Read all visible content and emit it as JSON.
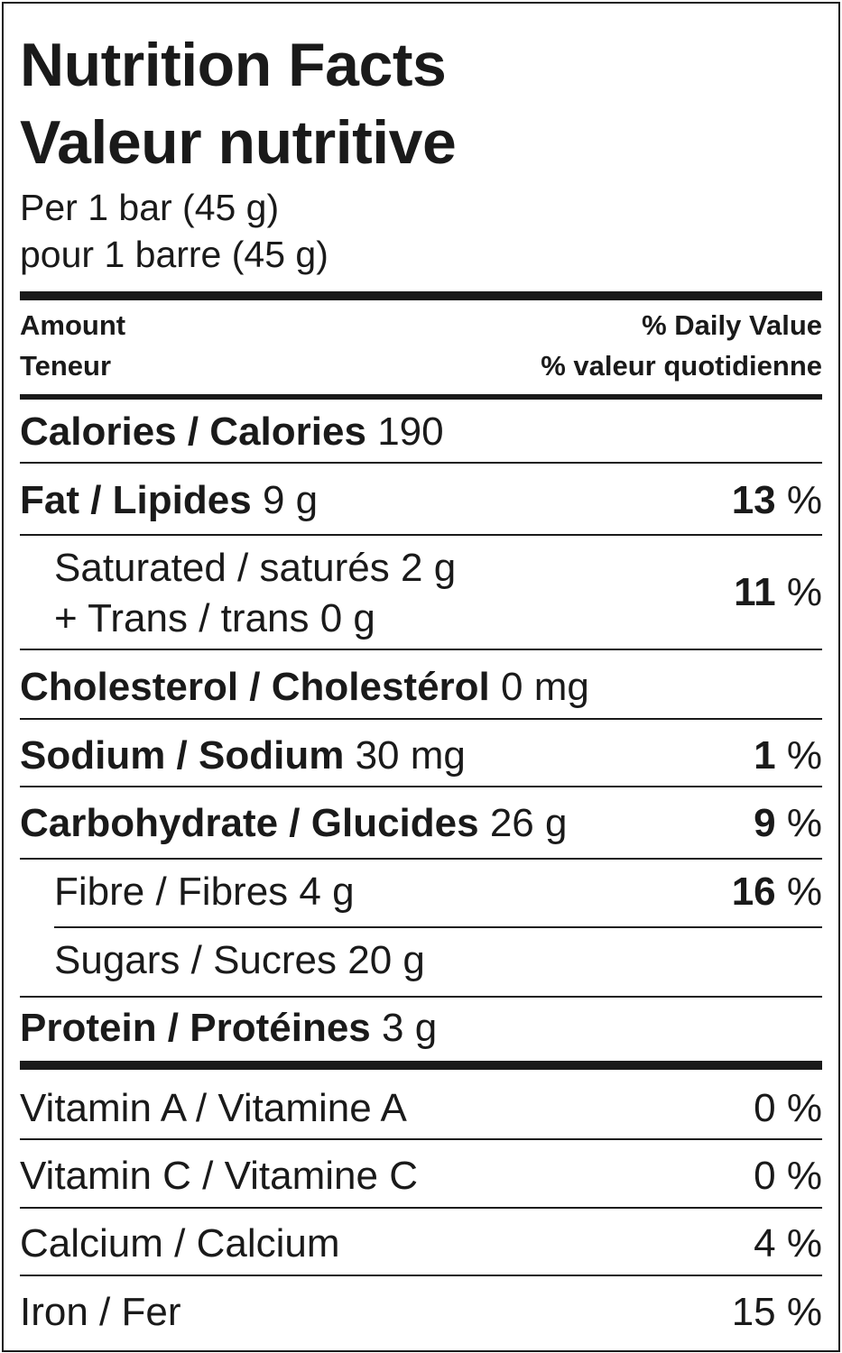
{
  "title_en": "Nutrition Facts",
  "title_fr": "Valeur nutritive",
  "serving_en": "Per 1 bar (45 g)",
  "serving_fr": "pour 1 barre (45 g)",
  "header": {
    "amount_en": "Amount",
    "amount_fr": "Teneur",
    "dv_en": "% Daily Value",
    "dv_fr": "% valeur quotidienne"
  },
  "calories": {
    "label": "Calories / Calories",
    "value": "190"
  },
  "nutrients": [
    {
      "label": "Fat / Lipides",
      "amount": "9 g",
      "dv": "13",
      "unit": "%"
    },
    {
      "label": "Saturated / saturés",
      "amount": "2 g",
      "label2": "+ Trans / trans",
      "amount2": "0 g",
      "dv": "11",
      "unit": "%"
    },
    {
      "label": "Cholesterol / Cholestérol",
      "amount": "0 mg"
    },
    {
      "label": "Sodium / Sodium",
      "amount": "30 mg",
      "dv": "1",
      "unit": "%"
    },
    {
      "label": "Carbohydrate / Glucides",
      "amount": "26 g",
      "dv": "9",
      "unit": "%"
    },
    {
      "label": "Fibre / Fibres",
      "amount": "4 g",
      "dv": "16",
      "unit": "%"
    },
    {
      "label": "Sugars / Sucres",
      "amount": "20 g"
    },
    {
      "label": "Protein / Protéines",
      "amount": "3 g"
    }
  ],
  "vitamins": [
    {
      "label": "Vitamin A / Vitamine A",
      "dv": "0",
      "unit": "%"
    },
    {
      "label": "Vitamin C / Vitamine C",
      "dv": "0",
      "unit": "%"
    },
    {
      "label": "Calcium / Calcium",
      "dv": "4",
      "unit": "%"
    },
    {
      "label": "Iron / Fer",
      "dv": "15",
      "unit": "%"
    }
  ]
}
